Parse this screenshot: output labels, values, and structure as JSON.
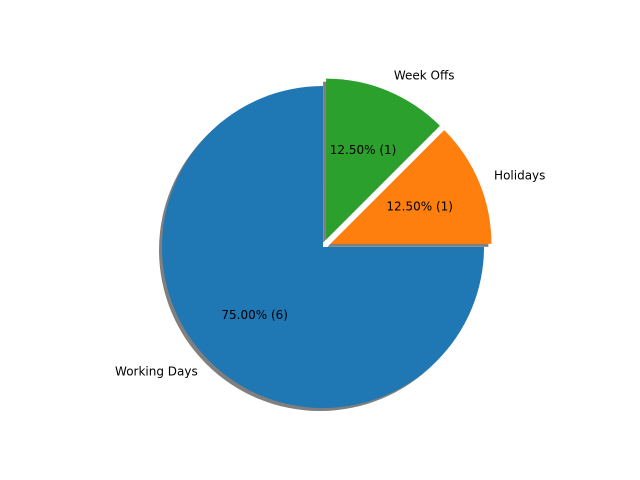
{
  "chart_data": {
    "type": "pie",
    "title": "",
    "slices": [
      {
        "label": "Holidays",
        "value": 1,
        "percent_label": "12.50%  (1)",
        "color": "#ff7f0e",
        "exploded": true
      },
      {
        "label": "Week Offs",
        "value": 1,
        "percent_label": "12.50%  (1)",
        "color": "#2ca02c",
        "exploded": true
      },
      {
        "label": "Working Days",
        "value": 6,
        "percent_label": "75.00%  (6)",
        "color": "#1f77b4",
        "exploded": false
      }
    ],
    "start_angle_deg": 0,
    "direction": "counterclockwise",
    "shadow": true,
    "legend": "none"
  }
}
